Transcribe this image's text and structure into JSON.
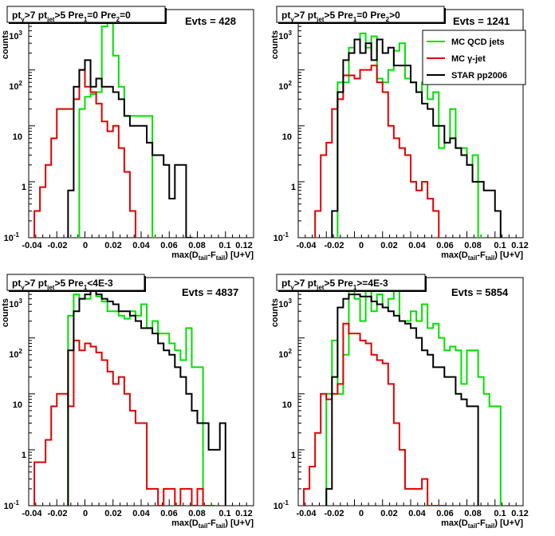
{
  "colors": {
    "mc_qcd": "#00e000",
    "mc_gamma": "#e00000",
    "star": "#000000"
  },
  "chart_data": [
    {
      "type": "line",
      "panel_title": "pt_γ>7  pt_jet>5 Pre_1=0 Pre_2=0",
      "title_parts": {
        "a": "pt",
        "a_sub": "γ",
        "b": ">7  pt",
        "b_sub": "jet",
        "c": ">5 Pre",
        "c_sub": "1",
        "d": "=0 Pre",
        "d_sub": "2",
        "e": "=0"
      },
      "evts": "Evts = 428",
      "ylabel": "counts",
      "xlabel_parts": {
        "a": "max(D",
        "a_sub": "tail",
        "b": "-F",
        "b_sub": "tail",
        "c": ") [U+V]"
      },
      "x_ticks": [
        "-0.04",
        "-0.02",
        "0",
        "0.02",
        "0.04",
        "0.06",
        "0.08",
        "0.1",
        "0.12"
      ],
      "y_ticks": {
        "t1": "1",
        "t10": "10",
        "t100": "10",
        "t1000": "10",
        "exp100": "2",
        "exp1000": "3",
        "exp_low": "-1"
      },
      "xlim": [
        -0.04,
        0.12
      ],
      "ylim": [
        0.1,
        1200
      ],
      "log_y": true,
      "legend": false,
      "bin_width": 0.004,
      "series": [
        {
          "key": "mc_qcd",
          "x_start": -0.012,
          "values": [
            0.1,
            0.1,
            20,
            33,
            37,
            40,
            600,
            1000,
            180,
            50,
            15,
            15,
            15,
            15,
            15,
            0.1
          ]
        },
        {
          "key": "mc_gamma",
          "x_start": -0.036,
          "values": [
            0.3,
            0.8,
            2,
            6,
            20,
            20,
            20,
            30,
            100,
            50,
            40,
            25,
            12,
            8,
            10,
            4,
            1.5,
            0.3
          ]
        },
        {
          "key": "star",
          "x_start": -0.012,
          "values": [
            0.7,
            50,
            100,
            150,
            50,
            70,
            50,
            50,
            40,
            30,
            15,
            10,
            10,
            10,
            5,
            3,
            3,
            2,
            0.5,
            2,
            2,
            0.1
          ]
        }
      ]
    },
    {
      "type": "line",
      "panel_title": "pt_γ>7  pt_jet>5 Pre_1=0 Pre_2>0",
      "title_parts": {
        "a": "pt",
        "a_sub": "γ",
        "b": ">7  pt",
        "b_sub": "jet",
        "c": ">5 Pre",
        "c_sub": "1",
        "d": "=0 Pre",
        "d_sub": "2",
        "e": ">0"
      },
      "evts": "Evts = 1241",
      "ylabel": "counts",
      "xlabel_parts": {
        "a": "max(D",
        "a_sub": "tail",
        "b": "-F",
        "b_sub": "tail",
        "c": ") [U+V]"
      },
      "x_ticks": [
        "-0.04",
        "-0.02",
        "0",
        "0.02",
        "0.04",
        "0.06",
        "0.08",
        "0.1",
        "0.12"
      ],
      "y_ticks": {
        "t1": "1",
        "t10": "10",
        "t100": "10",
        "t1000": "10",
        "exp100": "2",
        "exp1000": "3",
        "exp_low": "-1"
      },
      "xlim": [
        -0.04,
        0.12
      ],
      "ylim": [
        0.1,
        1200
      ],
      "log_y": true,
      "legend": true,
      "legend_entries": [
        "MC QCD jets",
        "MC γ-jet",
        "STAR pp2006"
      ],
      "bin_width": 0.004,
      "series": [
        {
          "key": "mc_qcd",
          "x_start": -0.012,
          "values": [
            60,
            60,
            250,
            350,
            450,
            250,
            400,
            70,
            60,
            100,
            220,
            300,
            70,
            60,
            40,
            60,
            30,
            40,
            4,
            5,
            20,
            4,
            4,
            2,
            3,
            0.1
          ]
        },
        {
          "key": "mc_gamma",
          "x_start": -0.028,
          "values": [
            0.3,
            3,
            5,
            20,
            30,
            80,
            80,
            70,
            100,
            100,
            120,
            60,
            40,
            10,
            6,
            4,
            3,
            1,
            0.7,
            1,
            0.5,
            0.3
          ]
        },
        {
          "key": "star",
          "x_start": -0.016,
          "values": [
            0.3,
            40,
            150,
            200,
            350,
            200,
            300,
            150,
            350,
            200,
            250,
            120,
            120,
            120,
            60,
            40,
            25,
            20,
            10,
            10,
            5,
            6,
            4,
            3,
            2,
            1,
            1,
            0.7,
            0.7,
            0.3
          ]
        }
      ]
    },
    {
      "type": "line",
      "panel_title": "pt_γ>7  pt_jet>5 Pre_1<4E-3",
      "title_parts": {
        "a": "pt",
        "a_sub": "γ",
        "b": ">7  pt",
        "b_sub": "jet",
        "c": ">5 Pre",
        "c_sub": "1",
        "d": "<4E-3",
        "d_sub": "",
        "e": ""
      },
      "evts": "Evts = 4837",
      "ylabel": "counts",
      "xlabel_parts": {
        "a": "max(D",
        "a_sub": "tail",
        "b": "-F",
        "b_sub": "tail",
        "c": ") [U+V]"
      },
      "x_ticks": [
        "-0.04",
        "-0.02",
        "0",
        "0.02",
        "0.04",
        "0.06",
        "0.08",
        "0.1",
        "0.12"
      ],
      "y_ticks": {
        "t1": "1",
        "t10": "10",
        "t100": "10",
        "t1000": "10",
        "exp100": "2",
        "exp1000": "3",
        "exp_low": "-1"
      },
      "xlim": [
        -0.04,
        0.12
      ],
      "ylim": [
        0.1,
        1200
      ],
      "log_y": true,
      "legend": false,
      "bin_width": 0.004,
      "series": [
        {
          "key": "mc_qcd",
          "x_start": -0.012,
          "values": [
            250,
            600,
            500,
            500,
            700,
            550,
            450,
            300,
            300,
            250,
            220,
            300,
            250,
            400,
            150,
            200,
            120,
            120,
            80,
            60,
            40,
            150,
            30,
            30,
            0.1
          ]
        },
        {
          "key": "mc_gamma",
          "x_start": -0.036,
          "values": [
            0.6,
            0.6,
            1.5,
            6,
            10,
            10,
            6,
            90,
            60,
            80,
            70,
            55,
            40,
            25,
            15,
            20,
            10,
            5,
            3,
            3,
            0.2,
            0.2,
            0.1,
            0.2,
            0.2,
            0.1,
            0.2,
            0.2,
            0.1,
            0.2,
            0.1,
            0.1
          ]
        },
        {
          "key": "star",
          "x_start": -0.012,
          "values": [
            60,
            300,
            500,
            600,
            700,
            600,
            500,
            450,
            400,
            300,
            300,
            250,
            200,
            150,
            150,
            120,
            80,
            60,
            50,
            30,
            20,
            10,
            5,
            3,
            3,
            1,
            1,
            3
          ]
        }
      ]
    },
    {
      "type": "line",
      "panel_title": "pt_γ>7  pt_jet>5 Pre_1>=4E-3",
      "title_parts": {
        "a": "pt",
        "a_sub": "γ",
        "b": ">7  pt",
        "b_sub": "jet",
        "c": ">5 Pre",
        "c_sub": "1",
        "d": ">=4E-3",
        "d_sub": "",
        "e": ""
      },
      "evts": "Evts = 5854",
      "ylabel": "counts",
      "xlabel_parts": {
        "a": "max(D",
        "a_sub": "tail",
        "b": "-F",
        "b_sub": "tail",
        "c": ") [U+V]"
      },
      "x_ticks": [
        "-0.04",
        "-0.02",
        "0",
        "0.02",
        "0.04",
        "0.06",
        "0.08",
        "0.1",
        "0.12"
      ],
      "y_ticks": {
        "t1": "1",
        "t10": "10",
        "t100": "10",
        "t1000": "10",
        "exp100": "2",
        "exp1000": "3",
        "exp_low": "-1"
      },
      "xlim": [
        -0.04,
        0.12
      ],
      "ylim": [
        0.1,
        1200
      ],
      "log_y": true,
      "legend": false,
      "bin_width": 0.004,
      "series": [
        {
          "key": "mc_qcd",
          "x_start": -0.02,
          "values": [
            10,
            90,
            10,
            50,
            1100,
            500,
            200,
            1000,
            300,
            600,
            350,
            500,
            1100,
            200,
            200,
            300,
            200,
            400,
            150,
            180,
            100,
            60,
            70,
            60,
            15,
            60,
            60,
            20,
            10,
            6,
            6
          ]
        },
        {
          "key": "mc_gamma",
          "x_start": -0.036,
          "values": [
            0.2,
            0.5,
            2,
            10,
            8,
            10,
            15,
            180,
            120,
            120,
            90,
            80,
            50,
            40,
            35,
            15,
            3,
            1,
            0.2,
            0.2,
            0.2,
            0.3,
            0.1,
            0.1,
            0.1
          ]
        },
        {
          "key": "star",
          "x_start": -0.02,
          "values": [
            0.2,
            20,
            350,
            500,
            600,
            600,
            550,
            550,
            450,
            400,
            350,
            300,
            250,
            200,
            180,
            150,
            100,
            60,
            50,
            30,
            30,
            20,
            20,
            10,
            8,
            6,
            6
          ]
        }
      ]
    }
  ]
}
